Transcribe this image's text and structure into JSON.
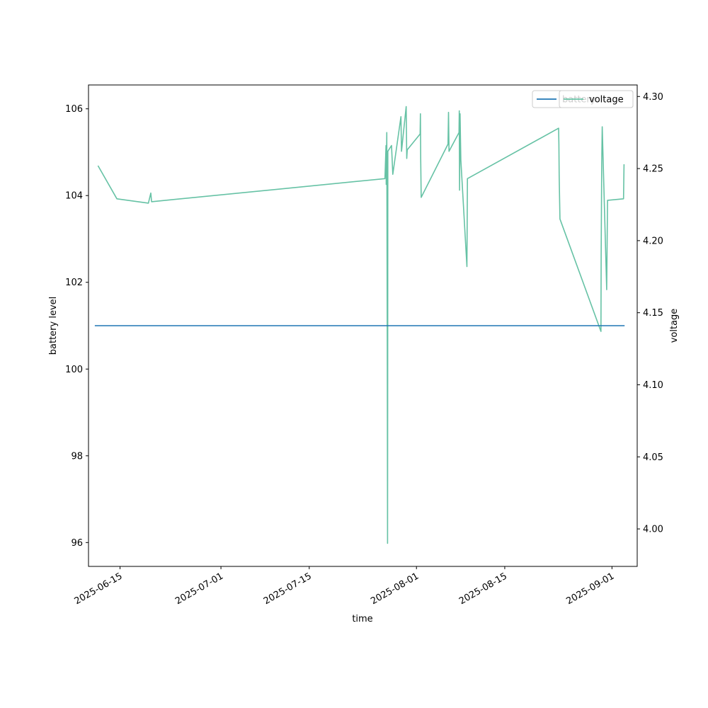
{
  "chart_data": {
    "type": "line",
    "xlabel": "time",
    "ylabel_left": "battery level",
    "ylabel_right": "voltage",
    "x_range": [
      "2025-06-10",
      "2025-09-05"
    ],
    "ylim_left": [
      95.45,
      106.55
    ],
    "ylim_right": [
      3.974,
      4.308
    ],
    "grid": false,
    "legend_placement": "top-right",
    "x_ticks": [
      "2025-06-15",
      "2025-07-01",
      "2025-07-15",
      "2025-08-01",
      "2025-08-15",
      "2025-09-01"
    ],
    "y_ticks_left": [
      "96",
      "98",
      "100",
      "102",
      "104",
      "106"
    ],
    "y_ticks_right": [
      "4.00",
      "4.05",
      "4.10",
      "4.15",
      "4.20",
      "4.25",
      "4.30"
    ],
    "series": [
      {
        "name": "battery",
        "axis": "left",
        "color": "#1f77b4",
        "points": [
          [
            "2025-06-11",
            101
          ],
          [
            "2025-09-03",
            101
          ]
        ]
      },
      {
        "name": "voltage",
        "axis": "right",
        "color": "#66c2a5",
        "points": [
          [
            "2025-06-11T12:00",
            4.252
          ],
          [
            "2025-06-14T12:00",
            4.229
          ],
          [
            "2025-06-19T12:00",
            4.226
          ],
          [
            "2025-06-19T21:00",
            4.233
          ],
          [
            "2025-06-20T00:00",
            4.227
          ],
          [
            "2025-07-27T00:00",
            4.243
          ],
          [
            "2025-07-27T04:00",
            4.266
          ],
          [
            "2025-07-27T05:00",
            4.239
          ],
          [
            "2025-07-27T07:00",
            4.275
          ],
          [
            "2025-07-27T09:00",
            4.129
          ],
          [
            "2025-07-27T10:00",
            3.99
          ],
          [
            "2025-07-27T11:00",
            4.262
          ],
          [
            "2025-07-28T01:00",
            4.266
          ],
          [
            "2025-07-28T06:00",
            4.246
          ],
          [
            "2025-07-29T13:00",
            4.286
          ],
          [
            "2025-07-29T15:00",
            4.262
          ],
          [
            "2025-07-30T09:00",
            4.293
          ],
          [
            "2025-07-30T11:00",
            4.257
          ],
          [
            "2025-07-30T13:00",
            4.263
          ],
          [
            "2025-08-01T14:00",
            4.274
          ],
          [
            "2025-08-01T15:00",
            4.288
          ],
          [
            "2025-08-01T16:00",
            4.257
          ],
          [
            "2025-08-01T18:00",
            4.23
          ],
          [
            "2025-08-06T00:00",
            4.267
          ],
          [
            "2025-08-06T02:00",
            4.289
          ],
          [
            "2025-08-06T04:00",
            4.262
          ],
          [
            "2025-08-07T18:00",
            4.275
          ],
          [
            "2025-08-07T19:00",
            4.29
          ],
          [
            "2025-08-07T20:00",
            4.235
          ],
          [
            "2025-08-07T22:00",
            4.288
          ],
          [
            "2025-08-08T01:00",
            4.256
          ],
          [
            "2025-08-09T00:00",
            4.182
          ],
          [
            "2025-08-09T02:00",
            4.243
          ],
          [
            "2025-08-23T13:00",
            4.278
          ],
          [
            "2025-08-23T14:00",
            4.267
          ],
          [
            "2025-08-23T15:00",
            4.245
          ],
          [
            "2025-08-23T18:00",
            4.215
          ],
          [
            "2025-08-30T06:00",
            4.137
          ],
          [
            "2025-08-30T07:00",
            4.19
          ],
          [
            "2025-08-30T09:00",
            4.254
          ],
          [
            "2025-08-30T11:00",
            4.279
          ],
          [
            "2025-08-31T04:00",
            4.166
          ],
          [
            "2025-08-31T07:00",
            4.228
          ],
          [
            "2025-09-02T20:00",
            4.229
          ],
          [
            "2025-09-02T22:00",
            4.253
          ]
        ]
      }
    ]
  }
}
